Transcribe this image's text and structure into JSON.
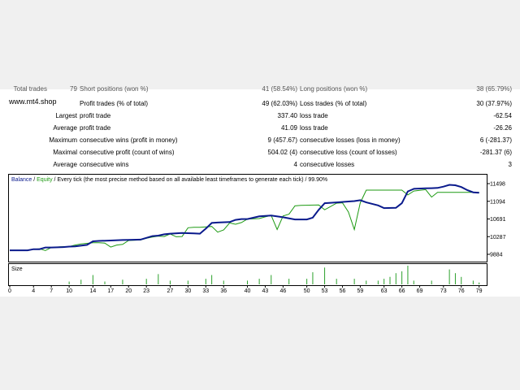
{
  "site": "www.mt4.shop",
  "top_clipped_row": {
    "label": "Total trades",
    "value": "79",
    "desc_label": "Short positions (won %)",
    "desc_value": "41 (58.54%)",
    "loss_label": "Long positions (won %)",
    "loss_value": "38 (65.79%)"
  },
  "stats": [
    {
      "row_label": "",
      "desc": "Profit trades (% of total)",
      "desc_value": "49 (62.03%)",
      "loss_label": "Loss trades (% of total)",
      "loss_value": "30 (37.97%)"
    },
    {
      "row_label": "Largest",
      "desc": "profit trade",
      "desc_value": "337.40",
      "loss_label": "loss trade",
      "loss_value": "-62.54"
    },
    {
      "row_label": "Average",
      "desc": "profit trade",
      "desc_value": "41.09",
      "loss_label": "loss trade",
      "loss_value": "-26.26"
    },
    {
      "row_label": "Maximum",
      "desc": "consecutive wins (profit in money)",
      "desc_value": "9 (457.67)",
      "loss_label": "consecutive losses (loss in money)",
      "loss_value": "6 (-281.37)"
    },
    {
      "row_label": "Maximal",
      "desc": "consecutive profit (count of wins)",
      "desc_value": "504.02 (4)",
      "loss_label": "consecutive loss (count of losses)",
      "loss_value": "-281.37 (6)"
    },
    {
      "row_label": "Average",
      "desc": "consecutive wins",
      "desc_value": "4",
      "loss_label": "consecutive losses",
      "loss_value": "3"
    }
  ],
  "chart_data": {
    "type": "line",
    "header": {
      "balance_label": "Balance",
      "sep": " / ",
      "equity_label": "Equity",
      "rest": " / Every tick (the most precise method based on all available least timeframes to generate each tick) / 99.90%"
    },
    "colors": {
      "balance": "#0a1a8c",
      "equity": "#1d9a12",
      "size_bars": "#2ca02c",
      "header_balance": "#0a1a8c",
      "header_equity": "#1d9a12"
    },
    "y_ticks": [
      "11498",
      "11094",
      "10691",
      "10287",
      "9884"
    ],
    "ylim": [
      9884,
      11498
    ],
    "xlim": [
      0,
      80
    ],
    "x_ticks": [
      "0",
      "4",
      "7",
      "10",
      "14",
      "17",
      "20",
      "23",
      "27",
      "30",
      "33",
      "36",
      "40",
      "43",
      "46",
      "50",
      "53",
      "56",
      "59",
      "63",
      "66",
      "69",
      "73",
      "76",
      "79"
    ],
    "size_label": "Size",
    "balance": [
      [
        0,
        9975
      ],
      [
        3,
        9975
      ],
      [
        4,
        10000
      ],
      [
        5,
        10000
      ],
      [
        6,
        10040
      ],
      [
        7,
        10040
      ],
      [
        9,
        10050
      ],
      [
        10,
        10060
      ],
      [
        11,
        10065
      ],
      [
        13,
        10100
      ],
      [
        14,
        10180
      ],
      [
        15,
        10190
      ],
      [
        17,
        10200
      ],
      [
        19,
        10210
      ],
      [
        20,
        10215
      ],
      [
        22,
        10220
      ],
      [
        24,
        10300
      ],
      [
        25,
        10310
      ],
      [
        26,
        10340
      ],
      [
        27,
        10355
      ],
      [
        29,
        10370
      ],
      [
        31,
        10360
      ],
      [
        32,
        10355
      ],
      [
        33,
        10470
      ],
      [
        34,
        10600
      ],
      [
        35,
        10610
      ],
      [
        37,
        10620
      ],
      [
        38,
        10670
      ],
      [
        39,
        10690
      ],
      [
        40,
        10690
      ],
      [
        42,
        10750
      ],
      [
        43,
        10760
      ],
      [
        44,
        10770
      ],
      [
        46,
        10730
      ],
      [
        48,
        10680
      ],
      [
        50,
        10680
      ],
      [
        51,
        10720
      ],
      [
        52,
        10900
      ],
      [
        53,
        11050
      ],
      [
        55,
        11070
      ],
      [
        57,
        11090
      ],
      [
        58,
        11100
      ],
      [
        59,
        11120
      ],
      [
        60,
        11070
      ],
      [
        62,
        11000
      ],
      [
        63,
        10940
      ],
      [
        65,
        10945
      ],
      [
        66,
        11050
      ],
      [
        67,
        11320
      ],
      [
        68,
        11380
      ],
      [
        70,
        11390
      ],
      [
        71,
        11395
      ],
      [
        72,
        11400
      ],
      [
        73,
        11430
      ],
      [
        74,
        11470
      ],
      [
        75,
        11460
      ],
      [
        76,
        11420
      ],
      [
        77,
        11350
      ],
      [
        78,
        11300
      ],
      [
        79,
        11290
      ]
    ],
    "equity": [
      [
        0,
        9975
      ],
      [
        3,
        9970
      ],
      [
        4,
        10000
      ],
      [
        5,
        10010
      ],
      [
        6,
        9970
      ],
      [
        7,
        10040
      ],
      [
        9,
        10060
      ],
      [
        10,
        10060
      ],
      [
        11,
        10095
      ],
      [
        12,
        10120
      ],
      [
        14,
        10150
      ],
      [
        15,
        10150
      ],
      [
        16,
        10140
      ],
      [
        17,
        10050
      ],
      [
        18,
        10095
      ],
      [
        19,
        10110
      ],
      [
        20,
        10200
      ],
      [
        22,
        10210
      ],
      [
        23,
        10250
      ],
      [
        24,
        10280
      ],
      [
        25,
        10300
      ],
      [
        26,
        10290
      ],
      [
        27,
        10350
      ],
      [
        28,
        10285
      ],
      [
        29,
        10290
      ],
      [
        30,
        10490
      ],
      [
        31,
        10500
      ],
      [
        32,
        10500
      ],
      [
        33,
        10510
      ],
      [
        34,
        10520
      ],
      [
        35,
        10390
      ],
      [
        36,
        10440
      ],
      [
        37,
        10600
      ],
      [
        38,
        10570
      ],
      [
        39,
        10610
      ],
      [
        40,
        10690
      ],
      [
        42,
        10700
      ],
      [
        43,
        10740
      ],
      [
        44,
        10770
      ],
      [
        45,
        10450
      ],
      [
        46,
        10760
      ],
      [
        47,
        10800
      ],
      [
        48,
        10990
      ],
      [
        49,
        11000
      ],
      [
        52,
        11010
      ],
      [
        53,
        10900
      ],
      [
        55,
        11050
      ],
      [
        56,
        11060
      ],
      [
        57,
        10850
      ],
      [
        58,
        10450
      ],
      [
        59,
        11060
      ],
      [
        60,
        11350
      ],
      [
        62,
        11350
      ],
      [
        63,
        11350
      ],
      [
        65,
        11350
      ],
      [
        66,
        11350
      ],
      [
        67,
        11240
      ],
      [
        68,
        11330
      ],
      [
        70,
        11360
      ],
      [
        71,
        11190
      ],
      [
        72,
        11300
      ],
      [
        73,
        11300
      ],
      [
        75,
        11300
      ],
      [
        79,
        11300
      ]
    ],
    "size_bars": [
      [
        10,
        0.15
      ],
      [
        12,
        0.25
      ],
      [
        14,
        0.5
      ],
      [
        16,
        0.15
      ],
      [
        19,
        0.25
      ],
      [
        23,
        0.3
      ],
      [
        25,
        0.55
      ],
      [
        27,
        0.2
      ],
      [
        30,
        0.2
      ],
      [
        33,
        0.3
      ],
      [
        34,
        0.5
      ],
      [
        36,
        0.2
      ],
      [
        40,
        0.2
      ],
      [
        42,
        0.3
      ],
      [
        44,
        0.5
      ],
      [
        47,
        0.3
      ],
      [
        50,
        0.3
      ],
      [
        51,
        0.65
      ],
      [
        53,
        0.9
      ],
      [
        55,
        0.3
      ],
      [
        58,
        0.3
      ],
      [
        60,
        0.2
      ],
      [
        62,
        0.2
      ],
      [
        63,
        0.3
      ],
      [
        64,
        0.4
      ],
      [
        65,
        0.6
      ],
      [
        66,
        0.7
      ],
      [
        67,
        1.0
      ],
      [
        68,
        0.2
      ],
      [
        71,
        0.2
      ],
      [
        74,
        0.8
      ],
      [
        75,
        0.6
      ],
      [
        76,
        0.4
      ],
      [
        78,
        0.2
      ],
      [
        79,
        0.1
      ]
    ]
  }
}
